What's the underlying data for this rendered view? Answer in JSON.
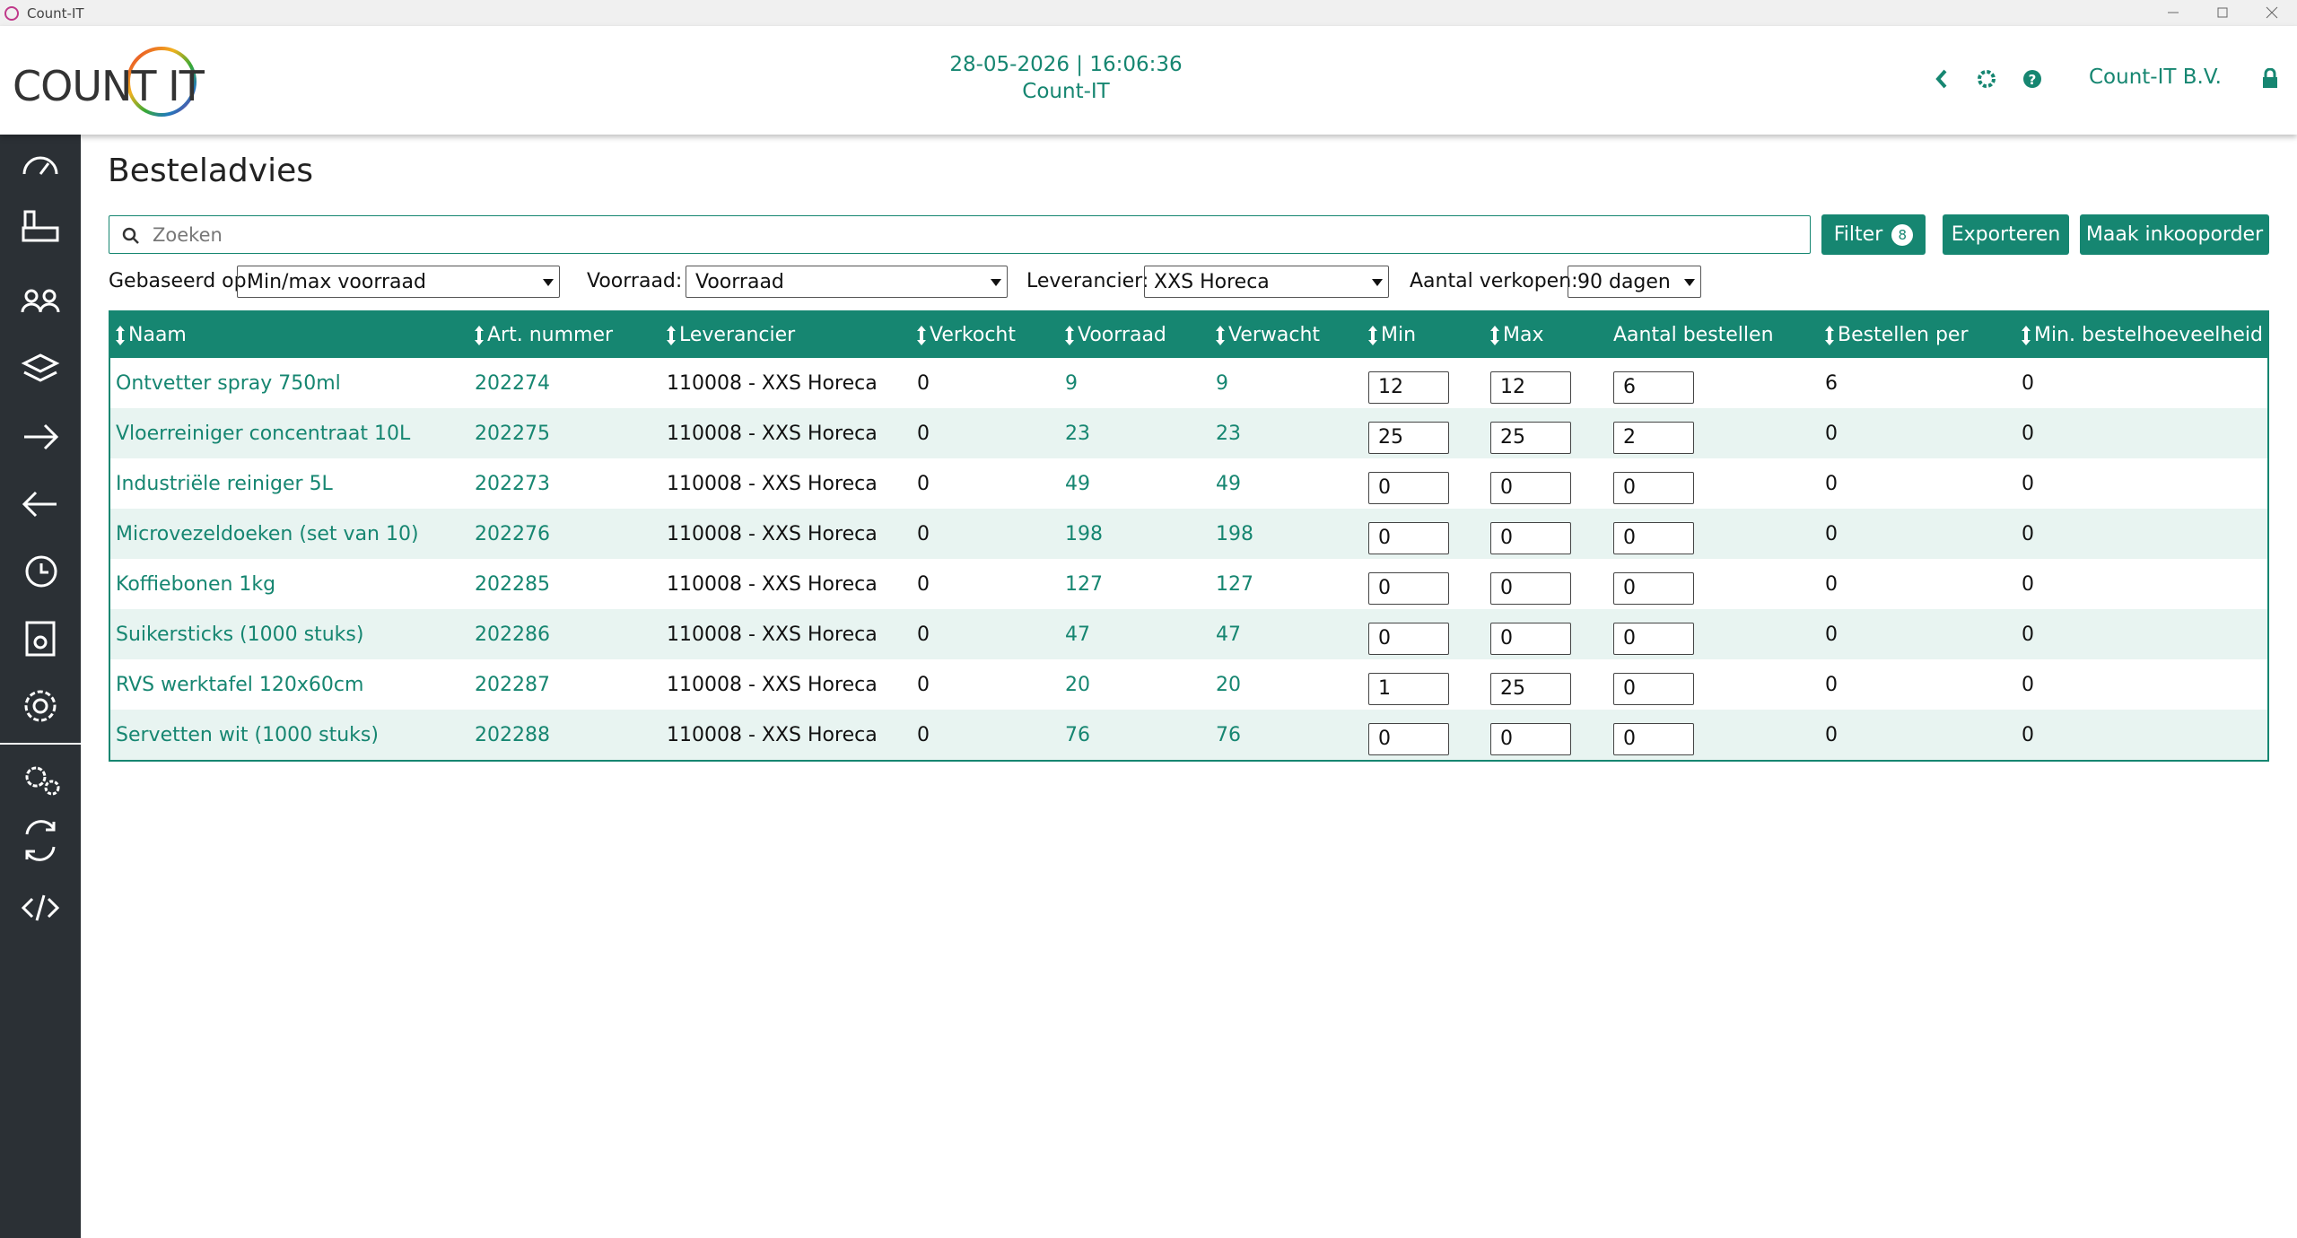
{
  "window": {
    "title": "Count-IT"
  },
  "header": {
    "logo": "COUNT IT",
    "date_time": "28-05-2026 | 16:06:36",
    "app_name": "Count-IT",
    "company": "Count-IT B.V."
  },
  "page": {
    "title": "Besteladvies",
    "search_placeholder": "Zoeken",
    "buttons": {
      "filter": "Filter",
      "filter_count": "8",
      "export": "Exporteren",
      "create": "Maak inkooporder"
    },
    "filters": [
      {
        "label": "Gebaseerd op:",
        "value": "Min/max voorraad"
      },
      {
        "label": "Voorraad:",
        "value": "Voorraad"
      },
      {
        "label": "Leverancier:",
        "value": "XXS Horeca"
      },
      {
        "label": "Aantal verkopen:",
        "value": "90 dagen"
      }
    ]
  },
  "table": {
    "columns": [
      "Naam",
      "Art. nummer",
      "Leverancier",
      "Verkocht",
      "Voorraad",
      "Verwacht",
      "Min",
      "Max",
      "Aantal bestellen",
      "Bestellen per",
      "Min. bestelhoeveelheid"
    ],
    "rows": [
      [
        "Ontvetter spray 750ml",
        "202274",
        "110008 - XXS Horeca",
        0,
        9,
        9,
        12,
        12,
        6,
        6,
        0
      ],
      [
        "Vloerreiniger concentraat 10L",
        "202275",
        "110008 - XXS Horeca",
        0,
        23,
        23,
        25,
        25,
        2,
        0,
        0
      ],
      [
        "Industriële reiniger 5L",
        "202273",
        "110008 - XXS Horeca",
        0,
        49,
        49,
        0,
        0,
        0,
        0,
        0
      ],
      [
        "Microvezeldoeken (set van 10)",
        "202276",
        "110008 - XXS Horeca",
        0,
        198,
        198,
        0,
        0,
        0,
        0,
        0
      ],
      [
        "Koffiebonen 1kg",
        "202285",
        "110008 - XXS Horeca",
        0,
        127,
        127,
        0,
        0,
        0,
        0,
        0
      ],
      [
        "Suikersticks (1000 stuks)",
        "202286",
        "110008 - XXS Horeca",
        0,
        47,
        47,
        0,
        0,
        0,
        0,
        0
      ],
      [
        "RVS werktafel 120x60cm",
        "202287",
        "110008 - XXS Horeca",
        0,
        20,
        20,
        1,
        25,
        0,
        0,
        0
      ],
      [
        "Servetten wit (1000 stuks)",
        "202288",
        "110008 - XXS Horeca",
        0,
        76,
        76,
        0,
        0,
        0,
        0,
        0
      ]
    ]
  }
}
